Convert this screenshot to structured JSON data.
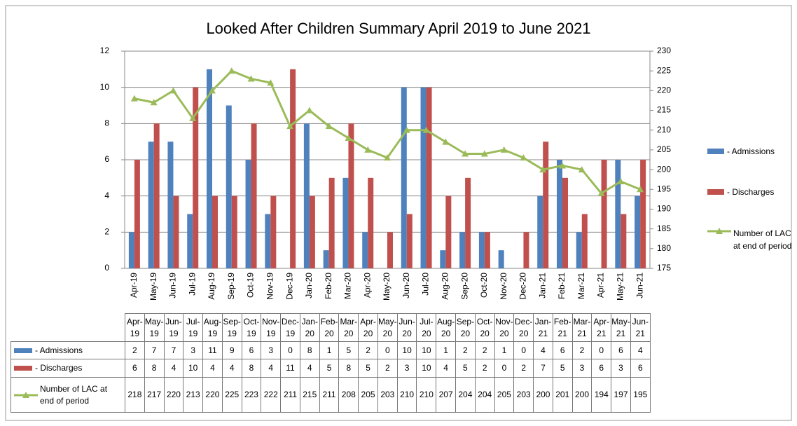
{
  "chart_data": {
    "type": "bar",
    "title": "Looked After Children Summary April 2019 to June 2021",
    "categories": [
      "Apr-19",
      "May-19",
      "Jun-19",
      "Jul-19",
      "Aug-19",
      "Sep-19",
      "Oct-19",
      "Nov-19",
      "Dec-19",
      "Jan-20",
      "Feb-20",
      "Mar-20",
      "Apr-20",
      "May-20",
      "Jun-20",
      "Jul-20",
      "Aug-20",
      "Sep-20",
      "Oct-20",
      "Nov-20",
      "Dec-20",
      "Jan-21",
      "Feb-21",
      "Mar-21",
      "Apr-21",
      "May-21",
      "Jun-21"
    ],
    "series": [
      {
        "name": "- Admissions",
        "color": "#4f81bd",
        "type": "bar",
        "values": [
          2,
          7,
          7,
          3,
          11,
          9,
          6,
          3,
          0,
          8,
          1,
          5,
          2,
          0,
          10,
          10,
          1,
          2,
          2,
          1,
          0,
          4,
          6,
          2,
          0,
          6,
          4
        ]
      },
      {
        "name": "- Discharges",
        "color": "#c0504d",
        "type": "bar",
        "values": [
          6,
          8,
          4,
          10,
          4,
          4,
          8,
          4,
          11,
          4,
          5,
          8,
          5,
          2,
          3,
          10,
          4,
          5,
          2,
          0,
          2,
          7,
          5,
          3,
          6,
          3,
          6
        ]
      },
      {
        "name": "Number of LAC at end of period",
        "color": "#9bbb59",
        "type": "line",
        "axis": "y2",
        "values": [
          218,
          217,
          220,
          213,
          220,
          225,
          223,
          222,
          211,
          215,
          211,
          208,
          205,
          203,
          210,
          210,
          207,
          204,
          204,
          205,
          203,
          200,
          201,
          200,
          194,
          197,
          195
        ]
      }
    ],
    "ylim": [
      0,
      12
    ],
    "yticks": [
      0,
      2,
      4,
      6,
      8,
      10,
      12
    ],
    "y2lim": [
      175,
      230
    ],
    "y2ticks": [
      175,
      180,
      185,
      190,
      195,
      200,
      205,
      210,
      215,
      220,
      225,
      230
    ],
    "grid": true,
    "legend": "right",
    "data_table": true
  }
}
